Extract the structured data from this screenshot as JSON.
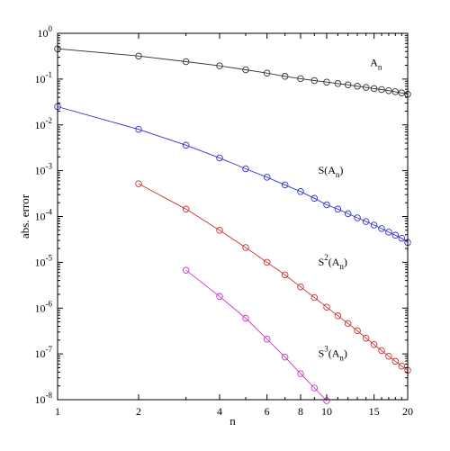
{
  "chart_data": {
    "type": "line",
    "xlabel": "n",
    "ylabel": "abs. error",
    "x_scale": "log",
    "y_scale": "log",
    "xlim": [
      1,
      20
    ],
    "ylim": [
      1e-08,
      1
    ],
    "grid": false,
    "x_ticks": [
      {
        "value": 1,
        "label": "1"
      },
      {
        "value": 2,
        "label": "2"
      },
      {
        "value": 4,
        "label": "4"
      },
      {
        "value": 6,
        "label": "6"
      },
      {
        "value": 8,
        "label": "8"
      },
      {
        "value": 10,
        "label": "10"
      },
      {
        "value": 15,
        "label": "15"
      },
      {
        "value": 20,
        "label": "20"
      }
    ],
    "x_minor_ticks": [
      3,
      5,
      7,
      9,
      11,
      12,
      13,
      14,
      16,
      17,
      18,
      19
    ],
    "y_ticks": [
      {
        "value": 1,
        "base": "10",
        "exp": "0"
      },
      {
        "value": 0.1,
        "base": "10",
        "exp": "-1"
      },
      {
        "value": 0.01,
        "base": "10",
        "exp": "-2"
      },
      {
        "value": 0.001,
        "base": "10",
        "exp": "-3"
      },
      {
        "value": 0.0001,
        "base": "10",
        "exp": "-4"
      },
      {
        "value": 1e-05,
        "base": "10",
        "exp": "-5"
      },
      {
        "value": 1e-06,
        "base": "10",
        "exp": "-6"
      },
      {
        "value": 1e-07,
        "base": "10",
        "exp": "-7"
      },
      {
        "value": 1e-08,
        "base": "10",
        "exp": "-8"
      }
    ],
    "series": [
      {
        "label_main": "A",
        "label_sup": "",
        "label_sub": "n",
        "label_open": "",
        "label_close": "",
        "label_at": [
          14.5,
          0.19
        ],
        "color": "#333333",
        "x": [
          1,
          2,
          3,
          4,
          5,
          6,
          7,
          8,
          9,
          10,
          11,
          12,
          13,
          14,
          15,
          16,
          17,
          18,
          19,
          20
        ],
        "y": [
          0.46,
          0.32,
          0.24,
          0.195,
          0.16,
          0.135,
          0.115,
          0.102,
          0.093,
          0.086,
          0.08,
          0.075,
          0.07,
          0.066,
          0.062,
          0.059,
          0.056,
          0.053,
          0.05,
          0.047
        ]
      },
      {
        "label_main": "S",
        "label_sup": "",
        "label_sub": "n",
        "label_open": "(A",
        "label_close": ")",
        "label_at": [
          9.3,
          0.00085
        ],
        "color": "#3333cc",
        "x": [
          1,
          2,
          3,
          4,
          5,
          6,
          7,
          8,
          9,
          10,
          11,
          12,
          13,
          14,
          15,
          16,
          17,
          18,
          19,
          20
        ],
        "y": [
          0.025,
          0.008,
          0.0036,
          0.0019,
          0.0011,
          0.00072,
          0.00049,
          0.00035,
          0.00025,
          0.00018,
          0.000145,
          0.000115,
          9.35e-05,
          7.75e-05,
          6.5e-05,
          5.45e-05,
          4.55e-05,
          3.9e-05,
          3.35e-05,
          2.7e-05
        ]
      },
      {
        "label_main": "S",
        "label_sup": "2",
        "label_sub": "n",
        "label_open": "(A",
        "label_close": ")",
        "label_at": [
          9.3,
          8.5e-06
        ],
        "color": "#cc3333",
        "x": [
          2,
          3,
          4,
          5,
          6,
          7,
          8,
          9,
          10,
          11,
          12,
          13,
          14,
          15,
          16,
          17,
          18,
          19,
          20
        ],
        "y": [
          0.00052,
          0.000145,
          5e-05,
          2.1e-05,
          1e-05,
          5.3e-06,
          2.9e-06,
          1.7e-06,
          1.05e-06,
          6.8e-07,
          4.6e-07,
          3.2e-07,
          2.2e-07,
          1.6e-07,
          1.18e-07,
          8.9e-08,
          6.9e-08,
          5.4e-08,
          4.4e-08
        ]
      },
      {
        "label_main": "S",
        "label_sup": "3",
        "label_sub": "n",
        "label_open": "(A",
        "label_close": ")",
        "label_at": [
          9.3,
          8.5e-08
        ],
        "color": "#cc33cc",
        "x": [
          3,
          4,
          5,
          6,
          7,
          8,
          9,
          10
        ],
        "y": [
          6.7e-06,
          1.8e-06,
          6e-07,
          2.1e-07,
          8.5e-08,
          3.7e-08,
          1.8e-08,
          9.5e-09
        ]
      }
    ]
  }
}
